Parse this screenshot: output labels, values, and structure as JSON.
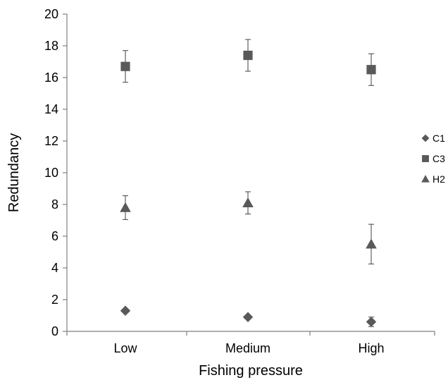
{
  "chart_data": {
    "type": "scatter",
    "title": "",
    "xlabel": "Fishing pressure",
    "ylabel": "Redundancy",
    "categories": [
      "Low",
      "Medium",
      "High"
    ],
    "ylim": [
      0,
      20
    ],
    "yticks": [
      0,
      2,
      4,
      6,
      8,
      10,
      12,
      14,
      16,
      18,
      20
    ],
    "grid": false,
    "legend_position": "right",
    "series": [
      {
        "name": "C1",
        "marker": "diamond",
        "color": "#595959",
        "values": [
          1.3,
          0.9,
          0.6
        ],
        "errors": [
          0.1,
          0.1,
          0.3
        ]
      },
      {
        "name": "C3",
        "marker": "square",
        "color": "#595959",
        "values": [
          16.7,
          17.4,
          16.5
        ],
        "errors": [
          1.0,
          1.0,
          1.0
        ]
      },
      {
        "name": "H2",
        "marker": "triangle",
        "color": "#595959",
        "values": [
          7.8,
          8.1,
          5.5
        ],
        "errors": [
          0.75,
          0.7,
          1.25
        ]
      }
    ]
  }
}
